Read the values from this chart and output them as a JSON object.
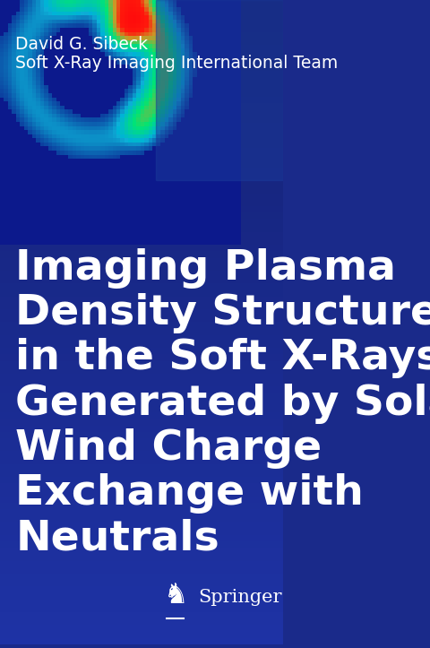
{
  "bg_color": "#1a2a8a",
  "bg_color_dark": "#0d1a5e",
  "author_line1": "David G. Sibeck",
  "author_line2": "Soft X-Ray Imaging International Team",
  "title_lines": [
    "Imaging Plasma",
    "Density Structures",
    "in the Soft X-Rays",
    "Generated by Solar",
    "Wind Charge",
    "Exchange with",
    "Neutrals"
  ],
  "springer_text": "Springer",
  "author_fontsize": 13.5,
  "title_fontsize": 34,
  "title_color": "#ffffff",
  "author_color": "#ffffff",
  "springer_color": "#ffffff",
  "fig_width": 4.8,
  "fig_height": 7.23
}
